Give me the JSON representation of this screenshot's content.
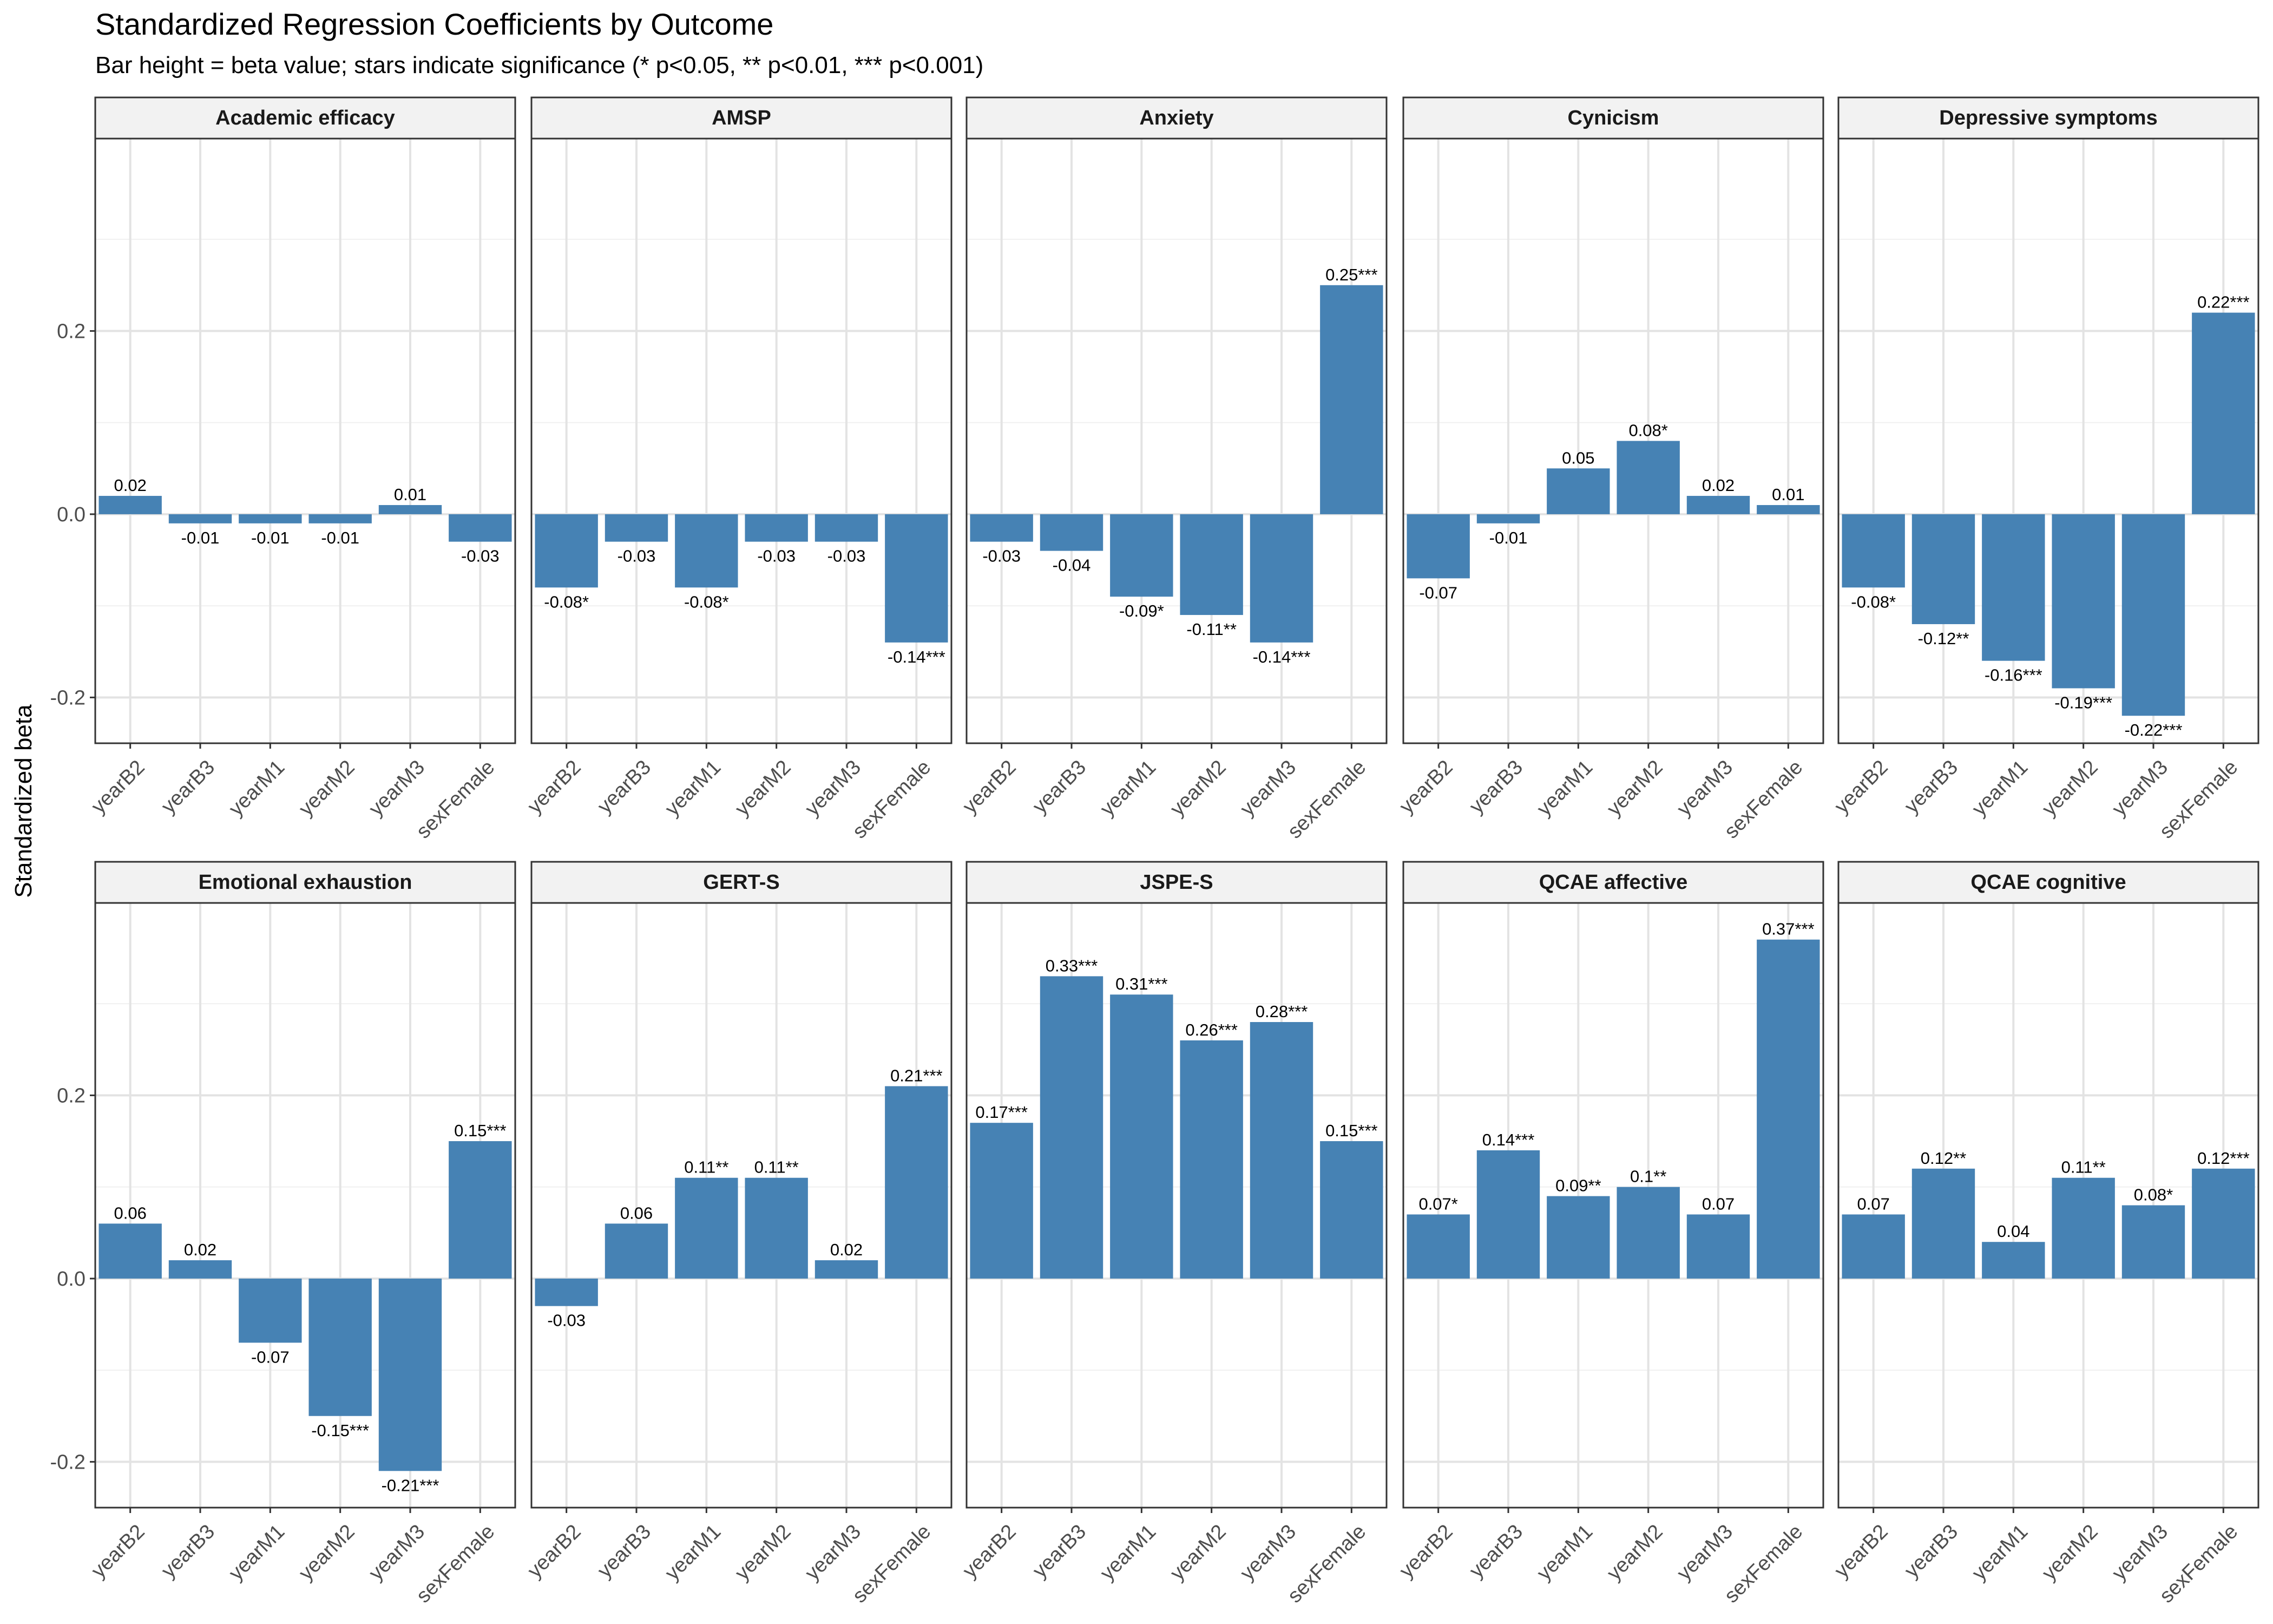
{
  "chart_data": {
    "type": "bar",
    "title": "Standardized Regression Coefficients by Outcome",
    "subtitle": "Bar height = beta value; stars indicate significance (* p<0.05, ** p<0.01, *** p<0.001)",
    "ylabel": "Standardized beta",
    "xlabel": "",
    "ylim": [
      -0.25,
      0.41
    ],
    "yticks": [
      -0.2,
      0.0,
      0.2
    ],
    "ytick_labels": [
      "-0.2",
      "0.0",
      "0.2"
    ],
    "grid": true,
    "bar_color": "#4682B4",
    "categories": [
      "yearB2",
      "yearB3",
      "yearM1",
      "yearM2",
      "yearM3",
      "sexFemale"
    ],
    "panels": [
      {
        "name": "Academic efficacy",
        "values": [
          0.02,
          -0.01,
          -0.01,
          -0.01,
          0.01,
          -0.03
        ],
        "labels": [
          "0.02",
          "-0.01",
          "-0.01",
          "-0.01",
          "0.01",
          "-0.03"
        ]
      },
      {
        "name": "AMSP",
        "values": [
          -0.08,
          -0.03,
          -0.08,
          -0.03,
          -0.03,
          -0.14
        ],
        "labels": [
          "-0.08*",
          "-0.03",
          "-0.08*",
          "-0.03",
          "-0.03",
          "-0.14***"
        ]
      },
      {
        "name": "Anxiety",
        "values": [
          -0.03,
          -0.04,
          -0.09,
          -0.11,
          -0.14,
          0.25
        ],
        "labels": [
          "-0.03",
          "-0.04",
          "-0.09*",
          "-0.11**",
          "-0.14***",
          "0.25***"
        ]
      },
      {
        "name": "Cynicism",
        "values": [
          -0.07,
          -0.01,
          0.05,
          0.08,
          0.02,
          0.01
        ],
        "labels": [
          "-0.07",
          "-0.01",
          "0.05",
          "0.08*",
          "0.02",
          "0.01"
        ]
      },
      {
        "name": "Depressive symptoms",
        "values": [
          -0.08,
          -0.12,
          -0.16,
          -0.19,
          -0.22,
          0.22
        ],
        "labels": [
          "-0.08*",
          "-0.12**",
          "-0.16***",
          "-0.19***",
          "-0.22***",
          "0.22***"
        ]
      },
      {
        "name": "Emotional exhaustion",
        "values": [
          0.06,
          0.02,
          -0.07,
          -0.15,
          -0.21,
          0.15
        ],
        "labels": [
          "0.06",
          "0.02",
          "-0.07",
          "-0.15***",
          "-0.21***",
          "0.15***"
        ]
      },
      {
        "name": "GERT-S",
        "values": [
          -0.03,
          0.06,
          0.11,
          0.11,
          0.02,
          0.21
        ],
        "labels": [
          "-0.03",
          "0.06",
          "0.11**",
          "0.11**",
          "0.02",
          "0.21***"
        ]
      },
      {
        "name": "JSPE-S",
        "values": [
          0.17,
          0.33,
          0.31,
          0.26,
          0.28,
          0.15
        ],
        "labels": [
          "0.17***",
          "0.33***",
          "0.31***",
          "0.26***",
          "0.28***",
          "0.15***"
        ]
      },
      {
        "name": "QCAE affective",
        "values": [
          0.07,
          0.14,
          0.09,
          0.1,
          0.07,
          0.37
        ],
        "labels": [
          "0.07*",
          "0.14***",
          "0.09**",
          "0.1**",
          "0.07",
          "0.37***"
        ]
      },
      {
        "name": "QCAE cognitive",
        "values": [
          0.07,
          0.12,
          0.04,
          0.11,
          0.08,
          0.12
        ],
        "labels": [
          "0.07",
          "0.12**",
          "0.04",
          "0.11**",
          "0.08*",
          "0.12***"
        ]
      }
    ]
  }
}
